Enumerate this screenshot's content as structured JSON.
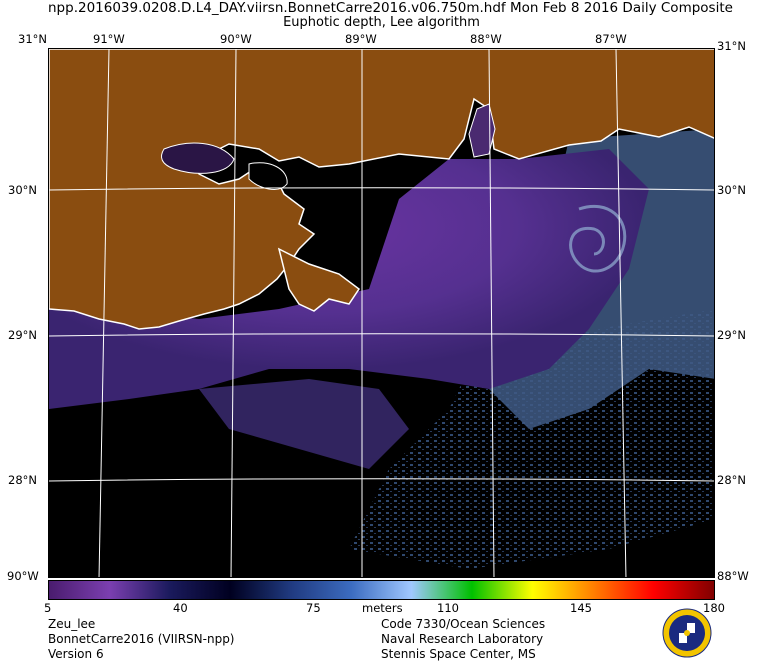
{
  "header": {
    "title": "npp.2016039.0208.D.L4_DAY.viirsn.BonnetCarre2016.v06.750m.hdf    Mon Feb  8 2016 Daily Composite",
    "subtitle": "Euphotic depth, Lee algorithm"
  },
  "map": {
    "lon_labels": [
      "91°W",
      "90°W",
      "89°W",
      "88°W",
      "87°W"
    ],
    "lat_labels": [
      "30°N",
      "29°N",
      "28°N"
    ],
    "corner_top_left": "31°N",
    "corner_top_right": "31°N",
    "corner_bottom_left": "90°W",
    "corner_bottom_right": "88°W",
    "colors": {
      "land": "#8a4d10",
      "coast_outline": "#ffffff",
      "grid": "#ffffff",
      "no_data": "#000000",
      "shallow_water": "#5a2a86",
      "deep_water": "#3f5b85"
    }
  },
  "colorbar": {
    "ticks": [
      "5",
      "40",
      "75",
      "110",
      "145",
      "180"
    ],
    "unit": "meters",
    "range": [
      5,
      180
    ],
    "stops": [
      "#4a1c6e",
      "#7b3fb0",
      "#1a1a5c",
      "#000020",
      "#203a80",
      "#3c6cc0",
      "#a0c8ff",
      "#00c000",
      "#ffff00",
      "#ff8000",
      "#ff0000",
      "#800000"
    ]
  },
  "footer": {
    "left": [
      "Zeu_lee",
      "BonnetCarre2016 (VIIRSN-npp)",
      "Version 6"
    ],
    "right": [
      "Code 7330/Ocean Sciences",
      "Naval Research Laboratory",
      "Stennis Space Center, MS"
    ]
  }
}
